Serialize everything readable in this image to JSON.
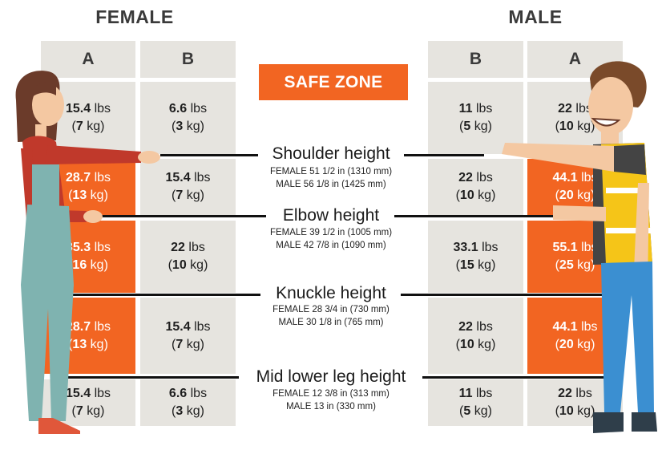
{
  "female": {
    "title": "FEMALE",
    "col_a": "A",
    "col_b": "B",
    "rows": [
      {
        "a_lbs": "15.4",
        "a_kg": "7",
        "b_lbs": "6.6",
        "b_kg": "3"
      },
      {
        "a_lbs": "28.7",
        "a_kg": "13",
        "b_lbs": "15.4",
        "b_kg": "7"
      },
      {
        "a_lbs": "35.3",
        "a_kg": "16",
        "b_lbs": "22",
        "b_kg": "10"
      },
      {
        "a_lbs": "28.7",
        "a_kg": "13",
        "b_lbs": "15.4",
        "b_kg": "7"
      },
      {
        "a_lbs": "15.4",
        "a_kg": "7",
        "b_lbs": "6.6",
        "b_kg": "3"
      }
    ]
  },
  "male": {
    "title": "MALE",
    "col_b": "B",
    "col_a": "A",
    "rows": [
      {
        "b_lbs": "11",
        "b_kg": "5",
        "a_lbs": "22",
        "a_kg": "10"
      },
      {
        "b_lbs": "22",
        "b_kg": "10",
        "a_lbs": "44.1",
        "a_kg": "20"
      },
      {
        "b_lbs": "33.1",
        "b_kg": "15",
        "a_lbs": "55.1",
        "a_kg": "25"
      },
      {
        "b_lbs": "22",
        "b_kg": "10",
        "a_lbs": "44.1",
        "a_kg": "20"
      },
      {
        "b_lbs": "11",
        "b_kg": "5",
        "a_lbs": "22",
        "a_kg": "10"
      }
    ]
  },
  "units": {
    "lbs": "lbs",
    "kg": "kg"
  },
  "legend": {
    "safe_zone": "SAFE ZONE"
  },
  "heights": [
    {
      "title": "Shoulder height",
      "female": "FEMALE 51 1/2 in (1310 mm)",
      "male": "MALE 56 1/8 in (1425 mm)"
    },
    {
      "title": "Elbow height",
      "female": "FEMALE 39 1/2 in (1005 mm)",
      "male": "MALE 42 7/8 in (1090 mm)"
    },
    {
      "title": "Knuckle height",
      "female": "FEMALE 28 3/4 in (730 mm)",
      "male": "MALE 30 1/8 in (765 mm)"
    },
    {
      "title": "Mid lower leg height",
      "female": "FEMALE 12 3/8 in (313 mm)",
      "male": "MALE 13 in (330 mm)"
    }
  ],
  "colors": {
    "safe": "#f26522",
    "cell": "#e6e4df",
    "line": "#111111"
  }
}
